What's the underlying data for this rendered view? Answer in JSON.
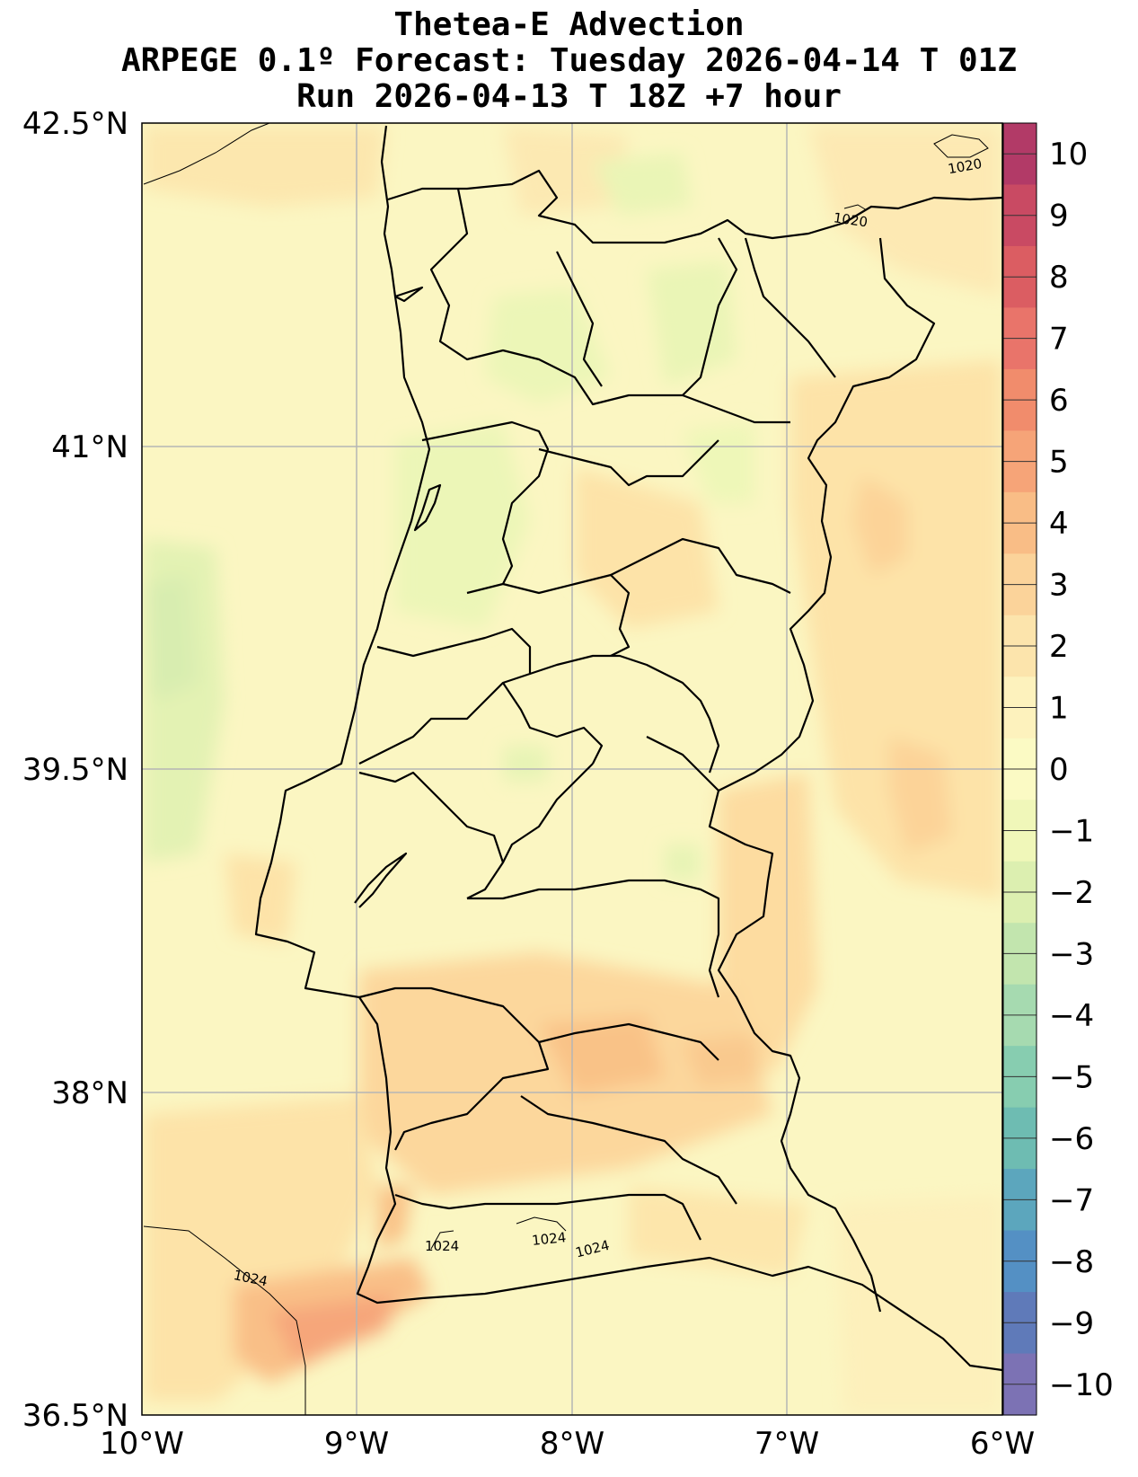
{
  "title": {
    "line1": "Thetea-E Advection",
    "line2": "ARPEGE 0.1º Forecast: Tuesday 2026-04-14 T 01Z",
    "line3": "Run 2026-04-13 T 18Z +7 hour"
  },
  "axes": {
    "lat_labels": [
      "42.5°N",
      "41°N",
      "39.5°N",
      "38°N",
      "36.5°N"
    ],
    "lon_labels": [
      "10°W",
      "9°W",
      "8°W",
      "7°W",
      "6°W"
    ],
    "lat_range": [
      36.5,
      42.5
    ],
    "lon_range": [
      -10,
      -6
    ],
    "grid": true
  },
  "colorbar": {
    "labels": [
      "10",
      "9",
      "8",
      "7",
      "6",
      "5",
      "4",
      "3",
      "2",
      "1",
      "0",
      "−1",
      "−2",
      "−3",
      "−4",
      "−5",
      "−6",
      "−7",
      "−8",
      "−9",
      "−10"
    ],
    "colors": [
      "#b23a67",
      "#c94a63",
      "#db5d62",
      "#e9746a",
      "#f18c6c",
      "#f6a478",
      "#f9bd86",
      "#fbd39a",
      "#fce4ac",
      "#fdf2bd",
      "#fbfac4",
      "#f0f7b9",
      "#dcefb0",
      "#c2e5ae",
      "#a6dab0",
      "#87cdb0",
      "#6ebcb2",
      "#5ca6bd",
      "#5490c4",
      "#5f7ab9",
      "#7c72b4"
    ]
  },
  "isobars": [
    {
      "label": "1020"
    },
    {
      "label": "1020"
    },
    {
      "label": "1024"
    },
    {
      "label": "1024"
    },
    {
      "label": "1024"
    },
    {
      "label": "1024"
    }
  ],
  "colors": {
    "background_field": "#fbf6c2",
    "grid": "#b5b5b5",
    "coast": "#000000"
  }
}
